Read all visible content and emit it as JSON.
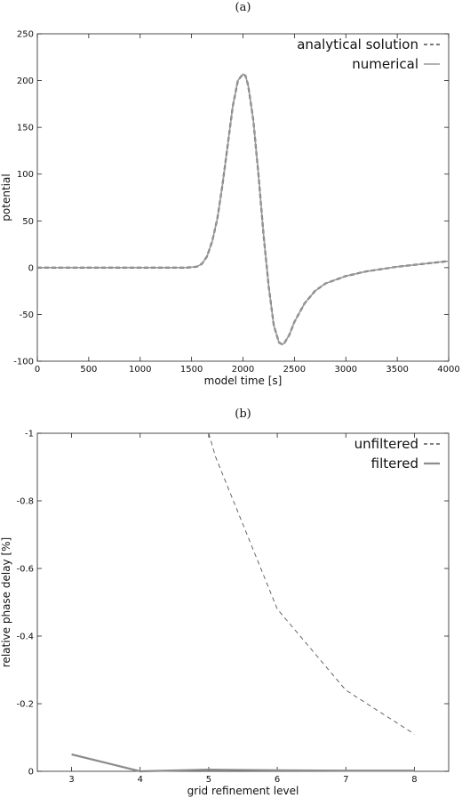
{
  "chart_data": [
    {
      "panel": "(a)",
      "type": "line",
      "xlabel": "model time [s]",
      "ylabel": "potential",
      "xlim": [
        0,
        4000
      ],
      "ylim": [
        -100,
        250
      ],
      "xticks": [
        0,
        500,
        1000,
        1500,
        2000,
        2500,
        3000,
        3500,
        4000
      ],
      "yticks": [
        -100,
        -50,
        0,
        50,
        100,
        150,
        200,
        250
      ],
      "grid": false,
      "legend_position": "top-right",
      "series": [
        {
          "name": "analytical solution",
          "style": "dashed",
          "color": "#4d4d4d",
          "x": [
            0,
            500,
            1000,
            1450,
            1550,
            1600,
            1650,
            1700,
            1750,
            1800,
            1850,
            1900,
            1950,
            2000,
            2025,
            2050,
            2100,
            2150,
            2200,
            2250,
            2300,
            2350,
            2380,
            2400,
            2450,
            2500,
            2600,
            2700,
            2800,
            3000,
            3200,
            3500,
            4000
          ],
          "y": [
            0,
            0,
            0,
            0,
            1,
            4,
            12,
            28,
            52,
            88,
            130,
            172,
            200,
            207,
            205,
            195,
            158,
            100,
            35,
            -20,
            -62,
            -80,
            -82,
            -81,
            -72,
            -58,
            -38,
            -25,
            -17,
            -9,
            -4,
            1,
            7
          ]
        },
        {
          "name": "numerical",
          "style": "solid",
          "color": "#9a9a9a",
          "x": [
            0,
            500,
            1000,
            1450,
            1550,
            1600,
            1650,
            1700,
            1750,
            1800,
            1850,
            1900,
            1950,
            2000,
            2025,
            2050,
            2100,
            2150,
            2200,
            2250,
            2300,
            2350,
            2380,
            2400,
            2450,
            2500,
            2600,
            2700,
            2800,
            3000,
            3200,
            3500,
            4000
          ],
          "y": [
            0,
            0,
            0,
            0,
            1,
            4,
            12,
            28,
            52,
            88,
            130,
            172,
            200,
            207,
            205,
            195,
            158,
            100,
            35,
            -20,
            -62,
            -80,
            -82,
            -81,
            -72,
            -58,
            -38,
            -25,
            -17,
            -9,
            -4,
            1,
            7
          ]
        }
      ]
    },
    {
      "panel": "(b)",
      "type": "line",
      "xlabel": "grid refinement level",
      "ylabel": "relative phase delay [%]",
      "xlim": [
        2.5,
        8.5
      ],
      "ylim": [
        0,
        -1
      ],
      "y_reversed": true,
      "xticks": [
        3,
        4,
        5,
        6,
        7,
        8
      ],
      "yticks": [
        -1,
        -0.8,
        -0.6,
        -0.4,
        -0.2,
        0
      ],
      "grid": false,
      "legend_position": "top-right",
      "series": [
        {
          "name": "unfiltered",
          "style": "dashed",
          "color": "#555555",
          "x": [
            5,
            5.1,
            6,
            7,
            8
          ],
          "y": [
            -1.0,
            -0.93,
            -0.48,
            -0.24,
            -0.11
          ]
        },
        {
          "name": "filtered",
          "style": "solid",
          "color": "#8c8c8c",
          "x": [
            3,
            4,
            5,
            6,
            7,
            8
          ],
          "y": [
            -0.05,
            0.0,
            -0.005,
            -0.003,
            -0.002,
            -0.002
          ]
        }
      ]
    }
  ]
}
